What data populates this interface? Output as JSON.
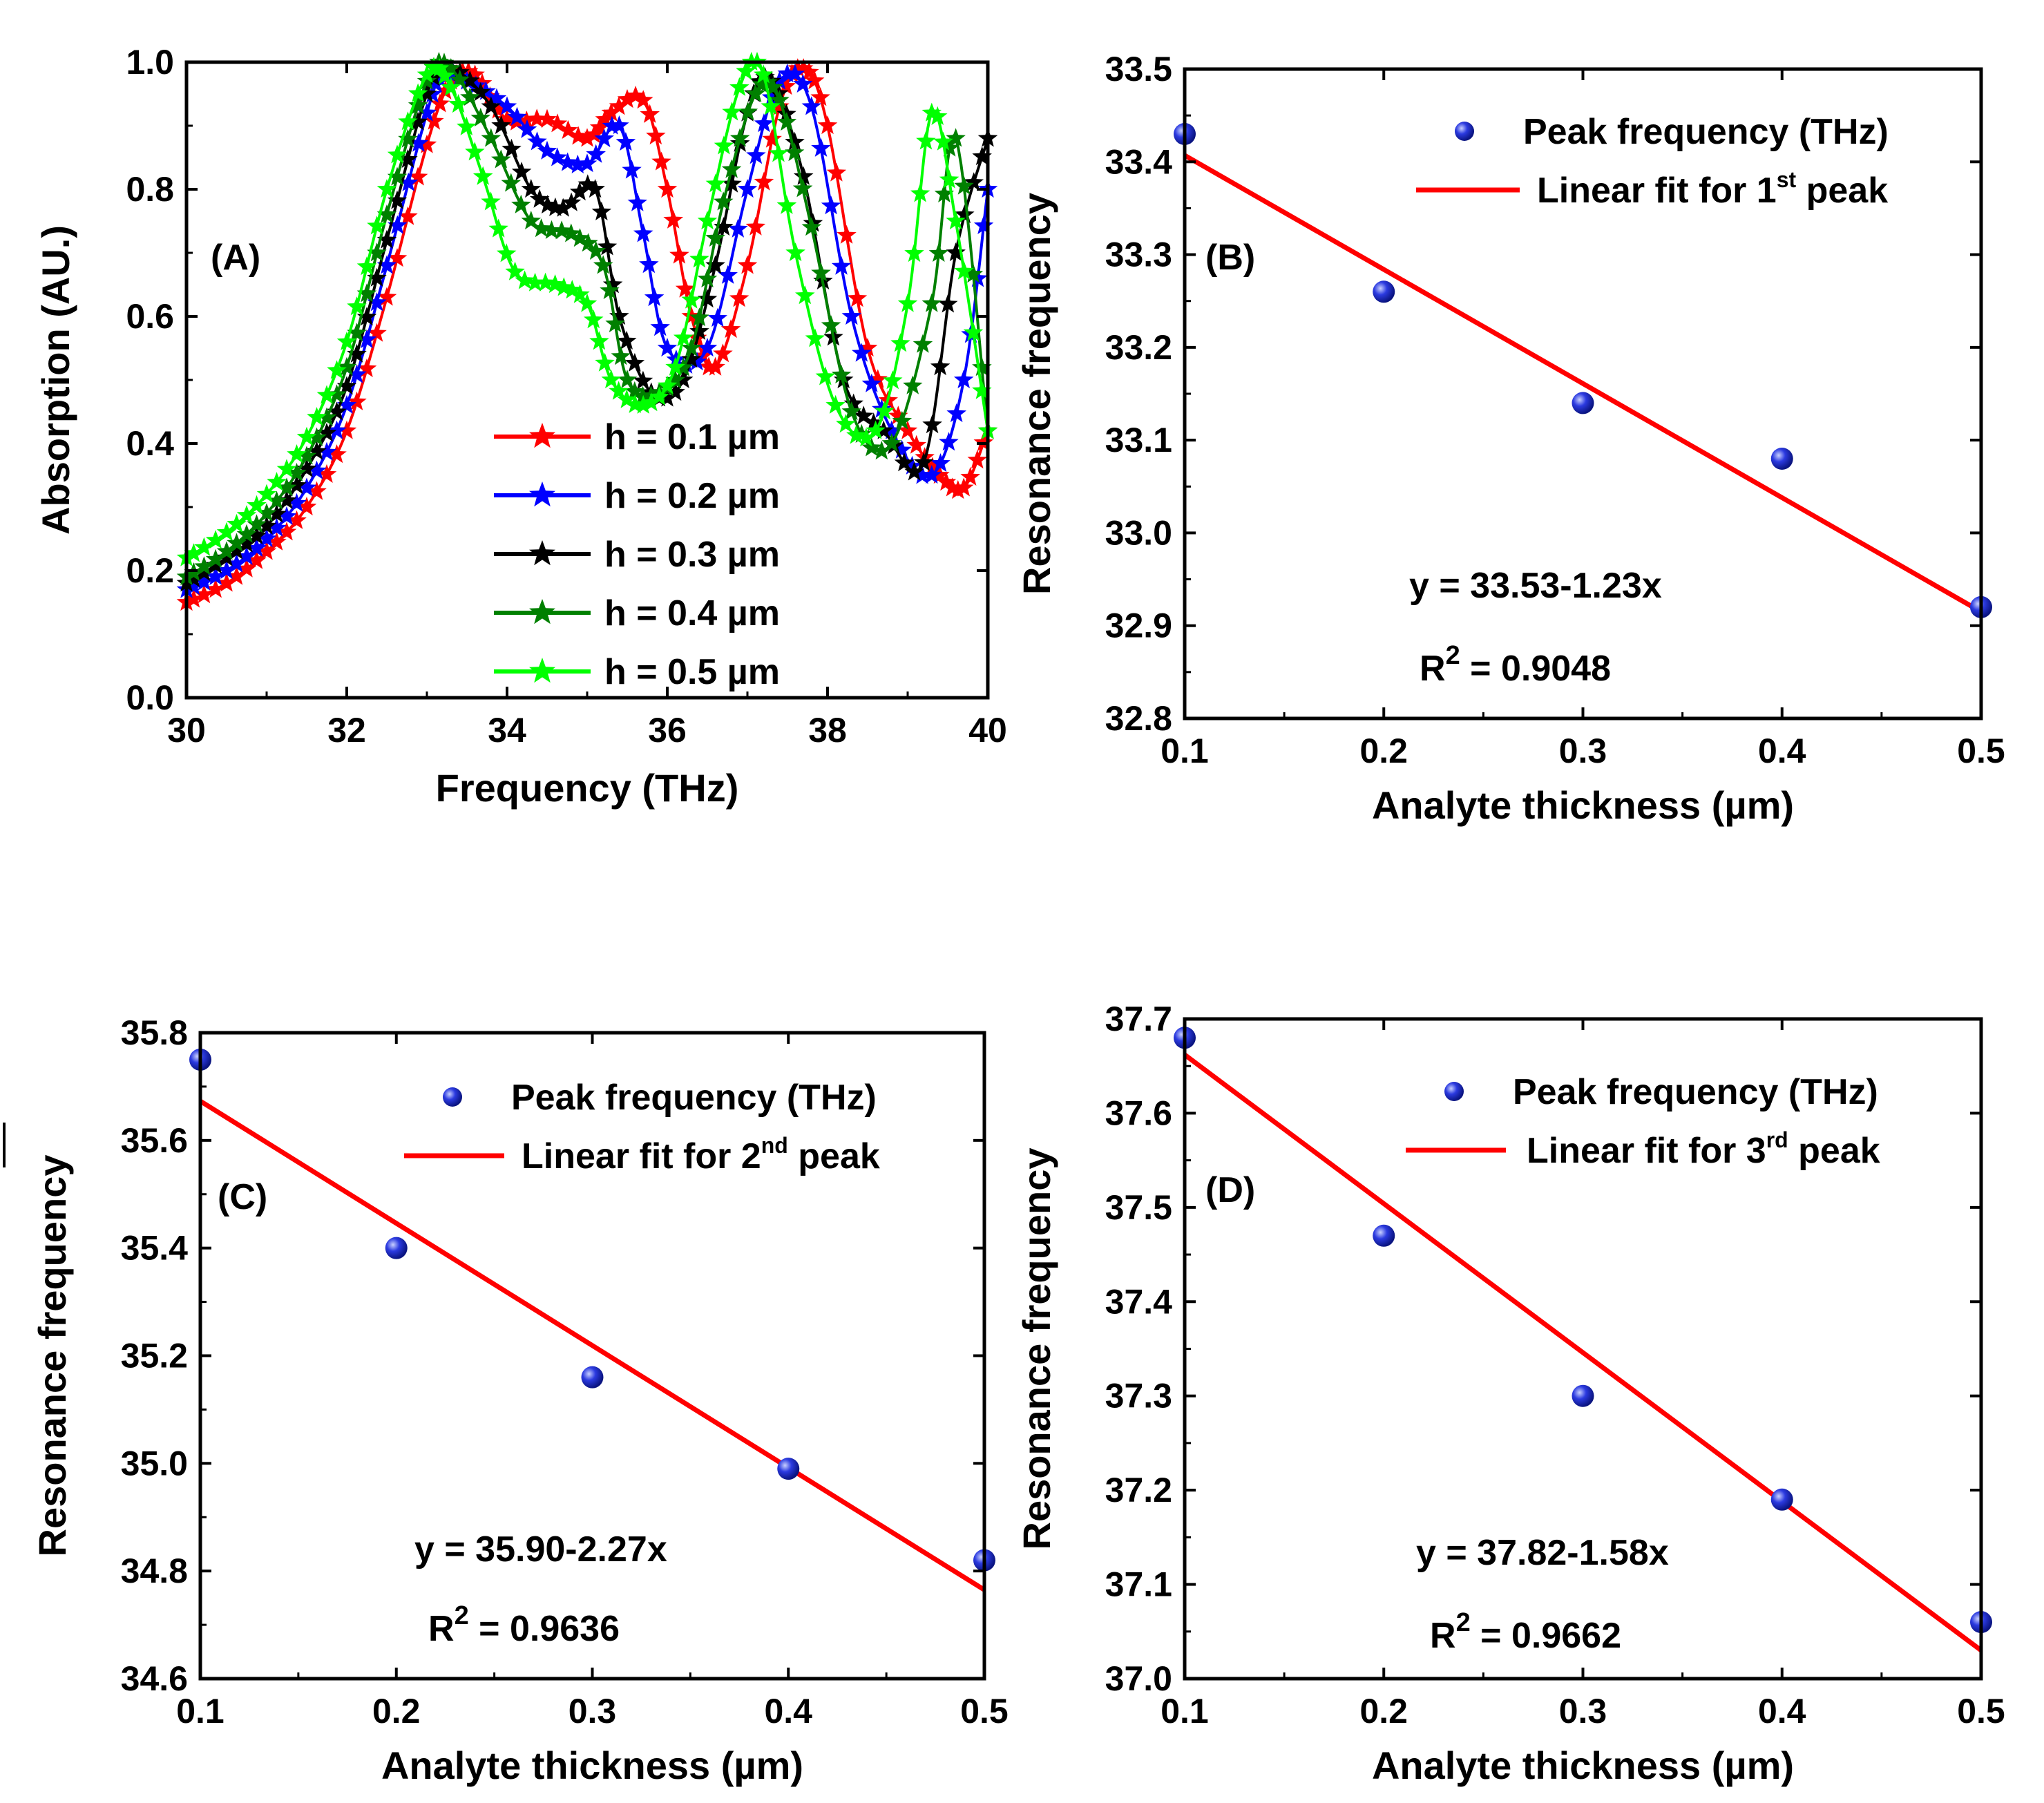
{
  "colors": {
    "h01": "#ff0000",
    "h02": "#0000ff",
    "h03": "#000000",
    "h04": "#008000",
    "h05": "#00ff00",
    "fit": "#ff0000",
    "point": "#1f2bd6"
  },
  "chart_data": [
    {
      "id": "A",
      "type": "line",
      "panel_label": "(A)",
      "xlabel": "Frequency (THz)",
      "ylabel": "Absorption (AU.)",
      "xlim": [
        30,
        40
      ],
      "ylim": [
        0,
        1
      ],
      "xticks": [
        "30",
        "32",
        "34",
        "36",
        "38",
        "40"
      ],
      "yticks": [
        "0.0",
        "0.2",
        "0.4",
        "0.6",
        "0.8",
        "1.0"
      ],
      "marker": "star",
      "series": [
        {
          "name": "h = 0.1 µm",
          "legend_prefix": "h = 0.1 ",
          "legend_unit": "µm",
          "color_key": "h01",
          "x": [
            30,
            30.5,
            31,
            31.5,
            32,
            32.5,
            33,
            33.3,
            33.6,
            34,
            34.5,
            35,
            35.3,
            35.7,
            36,
            36.3,
            36.6,
            37,
            37.4,
            37.7,
            38,
            38.5,
            39,
            39.4,
            39.7,
            40
          ],
          "y": [
            0.15,
            0.18,
            0.23,
            0.3,
            0.42,
            0.63,
            0.87,
            0.97,
            0.98,
            0.91,
            0.91,
            0.88,
            0.92,
            0.94,
            0.8,
            0.6,
            0.52,
            0.68,
            0.93,
            0.99,
            0.9,
            0.55,
            0.42,
            0.35,
            0.33,
            0.42
          ]
        },
        {
          "name": "h = 0.2 µm",
          "legend_prefix": "h = 0.2 ",
          "legend_unit": "µm",
          "color_key": "h02",
          "x": [
            30,
            30.5,
            31,
            31.5,
            32,
            32.5,
            33,
            33.2,
            33.5,
            34,
            34.5,
            35,
            35.4,
            35.7,
            36,
            36.5,
            37,
            37.4,
            37.8,
            38.3,
            38.8,
            39.3,
            39.7,
            40
          ],
          "y": [
            0.17,
            0.2,
            0.25,
            0.33,
            0.46,
            0.68,
            0.92,
            0.98,
            0.97,
            0.93,
            0.86,
            0.84,
            0.9,
            0.73,
            0.55,
            0.55,
            0.8,
            0.97,
            0.93,
            0.6,
            0.42,
            0.35,
            0.5,
            0.8
          ]
        },
        {
          "name": "h = 0.3 µm",
          "legend_prefix": "h = 0.3 ",
          "legend_unit": "µm",
          "color_key": "h03",
          "x": [
            30,
            30.5,
            31,
            31.5,
            32,
            32.5,
            33,
            33.3,
            33.8,
            34.3,
            34.7,
            35.1,
            35.4,
            35.8,
            36.2,
            36.6,
            37,
            37.3,
            37.7,
            38.2,
            38.7,
            39.2,
            39.6,
            40
          ],
          "y": [
            0.18,
            0.22,
            0.27,
            0.36,
            0.49,
            0.72,
            0.95,
            0.99,
            0.93,
            0.8,
            0.77,
            0.8,
            0.6,
            0.48,
            0.5,
            0.68,
            0.92,
            0.97,
            0.82,
            0.5,
            0.42,
            0.37,
            0.7,
            0.88
          ]
        },
        {
          "name": "h = 0.4 µm",
          "legend_prefix": "h = 0.4 ",
          "legend_unit": "µm",
          "color_key": "h04",
          "x": [
            30,
            30.5,
            31,
            31.5,
            32,
            32.5,
            33,
            33.3,
            33.8,
            34.3,
            34.8,
            35.2,
            35.5,
            35.9,
            36.3,
            36.7,
            37.1,
            37.4,
            37.8,
            38.3,
            38.8,
            39.3,
            39.6,
            40
          ],
          "y": [
            0.19,
            0.23,
            0.29,
            0.38,
            0.52,
            0.76,
            0.97,
            0.99,
            0.88,
            0.75,
            0.73,
            0.68,
            0.5,
            0.48,
            0.55,
            0.78,
            0.95,
            0.94,
            0.74,
            0.45,
            0.4,
            0.62,
            0.88,
            0.42
          ]
        },
        {
          "name": "h = 0.5 µm",
          "legend_prefix": "h = 0.5 ",
          "legend_unit": "µm",
          "color_key": "h05",
          "x": [
            30,
            30.5,
            31,
            31.5,
            32,
            32.5,
            33,
            33.3,
            33.7,
            34.1,
            34.6,
            35,
            35.3,
            35.7,
            36.1,
            36.5,
            36.9,
            37.2,
            37.6,
            38.1,
            38.6,
            39,
            39.3,
            39.6,
            40
          ],
          "y": [
            0.22,
            0.26,
            0.32,
            0.41,
            0.56,
            0.8,
            0.98,
            0.96,
            0.82,
            0.67,
            0.65,
            0.62,
            0.5,
            0.46,
            0.52,
            0.75,
            0.96,
            0.98,
            0.7,
            0.46,
            0.42,
            0.62,
            0.92,
            0.75,
            0.42
          ]
        }
      ]
    },
    {
      "id": "B",
      "type": "scatter",
      "panel_label": "(B)",
      "xlabel": "Analyte thickness (µm)",
      "ylabel": "Resonance frequency",
      "xlim": [
        0.1,
        0.5
      ],
      "ylim": [
        32.8,
        33.5
      ],
      "xticks": [
        "0.1",
        "0.2",
        "0.3",
        "0.4",
        "0.5"
      ],
      "yticks": [
        "32.8",
        "32.9",
        "33.0",
        "33.1",
        "33.2",
        "33.3",
        "33.4",
        "33.5"
      ],
      "points": {
        "x": [
          0.1,
          0.2,
          0.3,
          0.4,
          0.5
        ],
        "y": [
          33.43,
          33.26,
          33.14,
          33.08,
          32.92
        ]
      },
      "fit": {
        "intercept": 33.53,
        "slope": -1.23
      },
      "legend_points": "Peak frequency (THz)",
      "legend_fit_prefix": "Linear fit for 1",
      "legend_fit_sup": "st",
      "legend_fit_suffix": " peak",
      "equation": "y = 33.53-1.23x",
      "r2_label": "R",
      "r2_sup": "2",
      "r2_value": " = 0.9048"
    },
    {
      "id": "C",
      "type": "scatter",
      "panel_label": "(C)",
      "xlabel": "Analyte thickness (µm)",
      "ylabel": "Resonance frequency",
      "xlim": [
        0.1,
        0.5
      ],
      "ylim": [
        34.6,
        35.8
      ],
      "xticks": [
        "0.1",
        "0.2",
        "0.3",
        "0.4",
        "0.5"
      ],
      "yticks": [
        "34.6",
        "34.8",
        "35.0",
        "35.2",
        "35.4",
        "35.6",
        "35.8"
      ],
      "points": {
        "x": [
          0.1,
          0.2,
          0.3,
          0.4,
          0.5
        ],
        "y": [
          35.75,
          35.4,
          35.16,
          34.99,
          34.82
        ]
      },
      "fit": {
        "intercept": 35.9,
        "slope": -2.27
      },
      "legend_points": "Peak frequency (THz)",
      "legend_fit_prefix": "Linear fit for 2",
      "legend_fit_sup": "nd",
      "legend_fit_suffix": " peak",
      "equation": "y = 35.90-2.27x",
      "r2_label": "R",
      "r2_sup": "2",
      "r2_value": " = 0.9636"
    },
    {
      "id": "D",
      "type": "scatter",
      "panel_label": "(D)",
      "xlabel": "Analyte thickness (µm)",
      "ylabel": "Resonance frequency",
      "xlim": [
        0.1,
        0.5
      ],
      "ylim": [
        37.0,
        37.7
      ],
      "xticks": [
        "0.1",
        "0.2",
        "0.3",
        "0.4",
        "0.5"
      ],
      "yticks": [
        "37.0",
        "37.1",
        "37.2",
        "37.3",
        "37.4",
        "37.5",
        "37.6",
        "37.7"
      ],
      "points": {
        "x": [
          0.1,
          0.2,
          0.3,
          0.4,
          0.5
        ],
        "y": [
          37.68,
          37.47,
          37.3,
          37.19,
          37.06
        ]
      },
      "fit": {
        "intercept": 37.82,
        "slope": -1.58
      },
      "legend_points": "Peak frequency (THz)",
      "legend_fit_prefix": "Linear fit for 3",
      "legend_fit_sup": "rd",
      "legend_fit_suffix": " peak",
      "equation": "y = 37.82-1.58x",
      "r2_label": "R",
      "r2_sup": "2",
      "r2_value": " = 0.9662"
    }
  ]
}
